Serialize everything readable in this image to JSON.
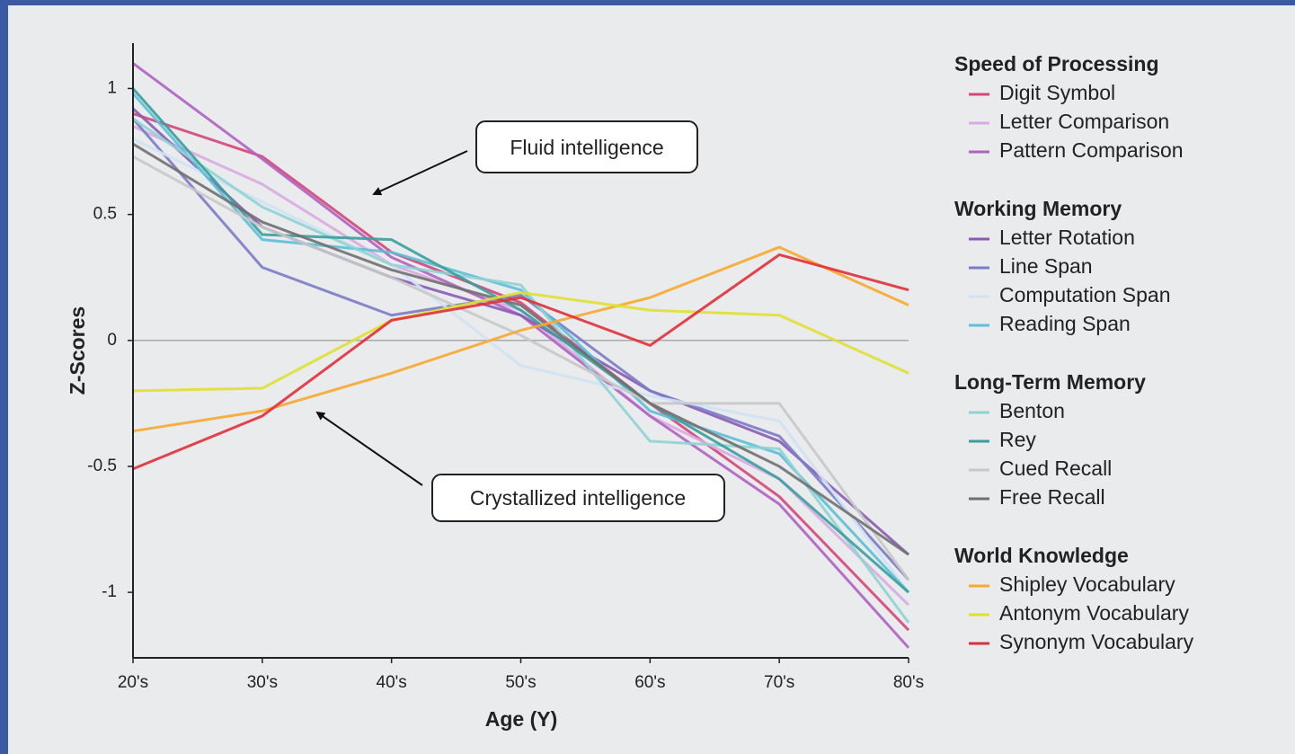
{
  "chart_data": {
    "type": "line",
    "x_label": "Age (Y)",
    "y_label": "Z-Scores",
    "categories": [
      "20's",
      "30's",
      "40's",
      "50's",
      "60's",
      "70's",
      "80's"
    ],
    "ylim": [
      -1.26,
      1.18
    ],
    "yticks": [
      1,
      0.5,
      0,
      -0.5,
      -1
    ],
    "hline": 0,
    "annotations": [
      "Fluid intelligence",
      "Crystallized intelligence"
    ],
    "series": [
      {
        "name": "Digit Symbol",
        "group": "Speed of Processing",
        "color": "#d4477a",
        "values": [
          0.9,
          0.73,
          0.35,
          0.15,
          -0.25,
          -0.62,
          -1.15
        ]
      },
      {
        "name": "Letter Comparison",
        "group": "Speed of Processing",
        "color": "#d9abe2",
        "values": [
          0.85,
          0.62,
          0.3,
          0.12,
          -0.3,
          -0.55,
          -1.05
        ]
      },
      {
        "name": "Pattern Comparison",
        "group": "Speed of Processing",
        "color": "#b062c2",
        "values": [
          1.1,
          0.72,
          0.33,
          0.1,
          -0.3,
          -0.65,
          -1.22
        ]
      },
      {
        "name": "Letter Rotation",
        "group": "Working Memory",
        "color": "#8a5bb5",
        "values": [
          0.92,
          0.45,
          0.25,
          0.1,
          -0.2,
          -0.4,
          -0.85
        ]
      },
      {
        "name": "Line Span",
        "group": "Working Memory",
        "color": "#7b7cc8",
        "values": [
          0.88,
          0.29,
          0.1,
          0.18,
          -0.2,
          -0.38,
          -0.95
        ]
      },
      {
        "name": "Computation Span",
        "group": "Working Memory",
        "color": "#cfe3f5",
        "values": [
          0.8,
          0.55,
          0.3,
          -0.1,
          -0.22,
          -0.32,
          -1.0
        ]
      },
      {
        "name": "Reading Span",
        "group": "Working Memory",
        "color": "#5bc0d8",
        "values": [
          0.98,
          0.4,
          0.35,
          0.2,
          -0.28,
          -0.45,
          -1.0
        ]
      },
      {
        "name": "Benton",
        "group": "Long-Term Memory",
        "color": "#8fd3d3",
        "values": [
          0.88,
          0.53,
          0.3,
          0.22,
          -0.4,
          -0.43,
          -1.12
        ]
      },
      {
        "name": "Rey",
        "group": "Long-Term Memory",
        "color": "#3a9e9e",
        "values": [
          1.0,
          0.42,
          0.4,
          0.12,
          -0.25,
          -0.55,
          -1.0
        ]
      },
      {
        "name": "Cued Recall",
        "group": "Long-Term Memory",
        "color": "#c8c8c8",
        "values": [
          0.73,
          0.45,
          0.25,
          0.02,
          -0.25,
          -0.25,
          -0.95
        ]
      },
      {
        "name": "Free Recall",
        "group": "Long-Term Memory",
        "color": "#707070",
        "values": [
          0.78,
          0.47,
          0.28,
          0.14,
          -0.25,
          -0.5,
          -0.85
        ]
      },
      {
        "name": "Shipley Vocabulary",
        "group": "World Knowledge",
        "color": "#f8a830",
        "values": [
          -0.36,
          -0.28,
          -0.13,
          0.04,
          0.17,
          0.37,
          0.14
        ]
      },
      {
        "name": "Antonym Vocabulary",
        "group": "World Knowledge",
        "color": "#e0e030",
        "values": [
          -0.2,
          -0.19,
          0.08,
          0.19,
          0.12,
          0.1,
          -0.13
        ]
      },
      {
        "name": "Synonym Vocabulary",
        "group": "World Knowledge",
        "color": "#e0303a",
        "values": [
          -0.51,
          -0.3,
          0.08,
          0.17,
          -0.02,
          0.34,
          0.2
        ]
      }
    ]
  }
}
